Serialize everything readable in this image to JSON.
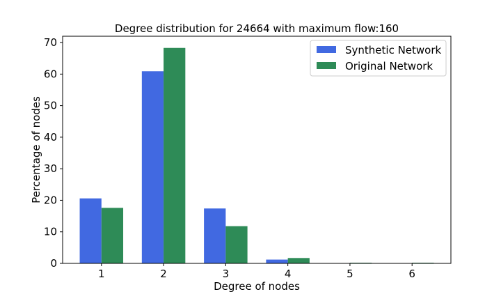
{
  "chart_data": {
    "type": "bar",
    "title": "Degree distribution for 24664 with maximum flow:160",
    "xlabel": "Degree of nodes",
    "ylabel": "Percentage of nodes",
    "categories": [
      "1",
      "2",
      "3",
      "4",
      "5",
      "6"
    ],
    "ylim": [
      0,
      72
    ],
    "yticks": [
      "0",
      "10",
      "20",
      "30",
      "40",
      "50",
      "60",
      "70"
    ],
    "grid": false,
    "legend_position": "top-right",
    "series": [
      {
        "name": "Synthetic Network",
        "color": "#4169e1",
        "values": [
          20.6,
          60.9,
          17.4,
          1.2,
          0.0,
          0.1
        ]
      },
      {
        "name": "Original Network",
        "color": "#2e8b57",
        "values": [
          17.6,
          68.3,
          11.8,
          1.7,
          0.2,
          0.2
        ]
      }
    ]
  }
}
